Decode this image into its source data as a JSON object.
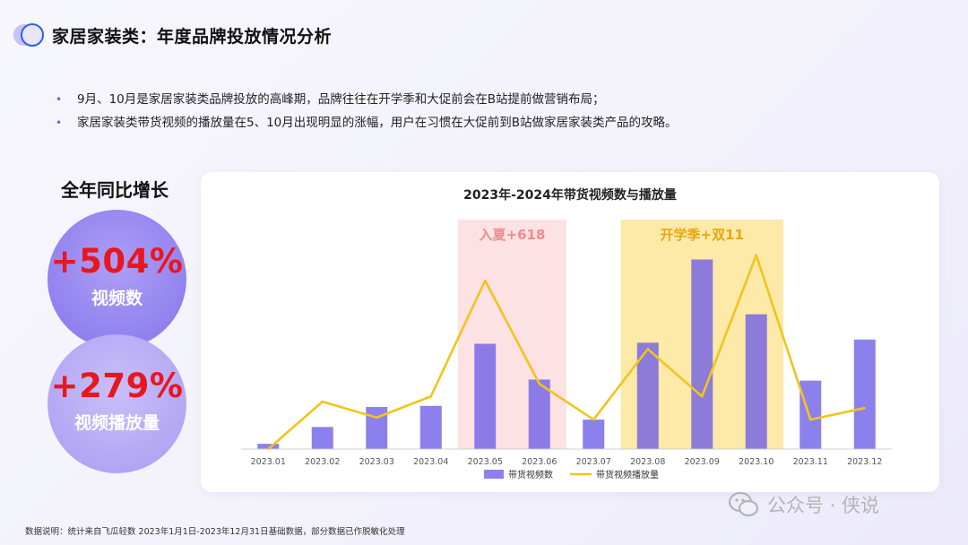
{
  "title": "家居家装类：年度品牌投放情况分析",
  "bullets": [
    "9月、10月是家居家装类品牌投放的高峰期，品牌往往在开学季和大促前会在B站提前做营销布局；",
    "家居家装类带货视频的播放量在5、10月出现明显的涨幅，用户在习惯在大促前到B站做家居家装类产品的攻略。"
  ],
  "growth": {
    "heading": "全年同比增长",
    "items": [
      {
        "value": "+504%",
        "label": "视频数"
      },
      {
        "value": "+279%",
        "label": "视频播放量"
      }
    ]
  },
  "chart_data": {
    "type": "bar",
    "title": "2023年-2024年带货视频数与播放量",
    "categories": [
      "2023.01",
      "2023.02",
      "2023.03",
      "2023.04",
      "2023.05",
      "2023.06",
      "2023.07",
      "2023.08",
      "2023.09",
      "2023.10",
      "2023.11",
      "2023.12"
    ],
    "series": [
      {
        "name": "带货视频数",
        "type": "bar",
        "values": [
          2.5,
          10.5,
          20,
          20.5,
          50,
          33,
          14,
          50.5,
          90,
          64,
          32.5,
          52
        ],
        "color": "#6b5ce7"
      },
      {
        "name": "带货视频播放量",
        "type": "line",
        "values": [
          0,
          22.5,
          15,
          25,
          80,
          31,
          14,
          47.5,
          25,
          92,
          14,
          19.5
        ],
        "color": "#f2c41c"
      }
    ],
    "ylim": [
      0,
      100
    ],
    "y_axis_visible": false,
    "legend_position": "bottom",
    "highlights": [
      {
        "label": "入夏+618",
        "range": [
          "2023.05",
          "2023.06"
        ],
        "color": "#fde2e4",
        "text_color": "#f08a8a"
      },
      {
        "label": "开学季+双11",
        "range": [
          "2023.08",
          "2023.10"
        ],
        "color": "#fde9a8",
        "text_color": "#e8a514"
      }
    ]
  },
  "footnote": "数据说明：统计来自飞瓜轻数 2023年1月1日-2023年12月31日基础数据，部分数据已作脱敏化处理",
  "watermark": {
    "text": "公众号 · 侠说",
    "icon": "wechat-icon"
  }
}
